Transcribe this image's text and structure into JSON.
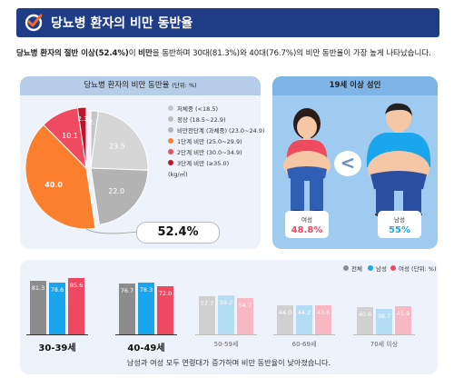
{
  "title": "당뇨병 환자의 비만 동반율",
  "subtitle": {
    "bold": "당뇨병 환자의 절반 이상(52.4%)",
    "mid": "이 ",
    "bold2": "비만",
    "rest": "을 동반하며 30대(81.3%)와 40대(76.7%)의 비만 동반율이 가장 높게 나타났습니다."
  },
  "pie_card": {
    "title": "당뇨병 환자의 비만 동반율",
    "unit": "(단위: %)",
    "callout": "52.4%"
  },
  "adult_card": {
    "title": "19세 이상 성인",
    "comparator": "<",
    "female": {
      "label": "여성",
      "value": "48.8%"
    },
    "male": {
      "label": "남성",
      "value": "55%"
    }
  },
  "colors": {
    "total": "#8c8c8c",
    "male": "#1aa6ec",
    "female": "#ee4863",
    "navy": "#1f3d86"
  },
  "bar_legend": {
    "total": "전체",
    "male": "남성",
    "female": "여성",
    "unit": "(단위: %)"
  },
  "note": "남성과 여성 모두 연령대가 증가하며 비만 동반율이 낮아졌습니다.",
  "chart_data": [
    {
      "type": "pie",
      "title": "당뇨병 환자의 비만 동반율",
      "unit": "%",
      "slices": [
        {
          "label": "저체중 (<18.5)",
          "value": 2.1,
          "color": "#c5c5c5"
        },
        {
          "label": "정상 (18.5~22.9)",
          "value": 23.5,
          "color": "#d6d6d6"
        },
        {
          "label": "비만전단계 (과체중) (23.0~24.9)",
          "value": 22.0,
          "color": "#b3b3b3"
        },
        {
          "label": "1단계 비만 (25.0~29.9)",
          "value": 40.0,
          "color": "#fb7f2d"
        },
        {
          "label": "2단계 비만 (30.0~34.9)",
          "value": 10.1,
          "color": "#f04a60"
        },
        {
          "label": "3단계 비만 (≥35.0)",
          "value": 2.3,
          "color": "#bf1528"
        }
      ],
      "legend_note": "(kg/㎡)",
      "highlight_total": "52.4%"
    },
    {
      "type": "bar",
      "categories": [
        "30-39세",
        "40-49세",
        "50-59세",
        "60-69세",
        "70세 이상"
      ],
      "series": [
        {
          "name": "전체",
          "values": [
            81.3,
            76.7,
            57.7,
            44.0,
            40.6
          ]
        },
        {
          "name": "남성",
          "values": [
            78.6,
            78.3,
            59.2,
            44.2,
            38.7
          ]
        },
        {
          "name": "여성",
          "values": [
            85.6,
            72.0,
            54.7,
            43.6,
            41.9
          ]
        }
      ],
      "unit": "%",
      "highlighted_categories": [
        "30-39세",
        "40-49세"
      ]
    }
  ]
}
